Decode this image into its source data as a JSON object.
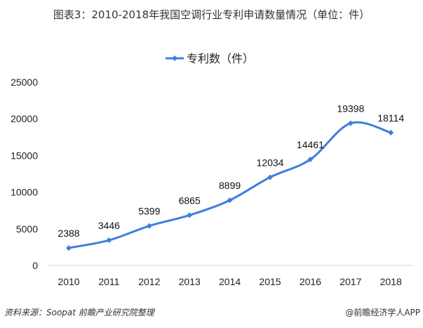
{
  "title": "图表3：2010-2018年我国空调行业专利申请数量情况（单位：件）",
  "source": "资料来源：Soopat 前瞻产业研究院整理",
  "credit": "@前瞻经济学人APP",
  "chart_data": {
    "type": "line",
    "title": "图表3：2010-2018年我国空调行业专利申请数量情况（单位：件）",
    "categories": [
      "2010",
      "2011",
      "2012",
      "2013",
      "2014",
      "2015",
      "2016",
      "2017",
      "2018"
    ],
    "series": [
      {
        "name": "专利数（件）",
        "values": [
          2388,
          3446,
          5399,
          6865,
          8899,
          12034,
          14461,
          19398,
          18114
        ],
        "color": "#3d7fdc",
        "marker": "diamond",
        "smooth": true
      }
    ],
    "yticks": [
      "0",
      "5000",
      "10000",
      "15000",
      "20000",
      "25000"
    ],
    "ylim": [
      0,
      25000
    ],
    "legend": "top-center",
    "grid": false,
    "data_labels": true
  }
}
